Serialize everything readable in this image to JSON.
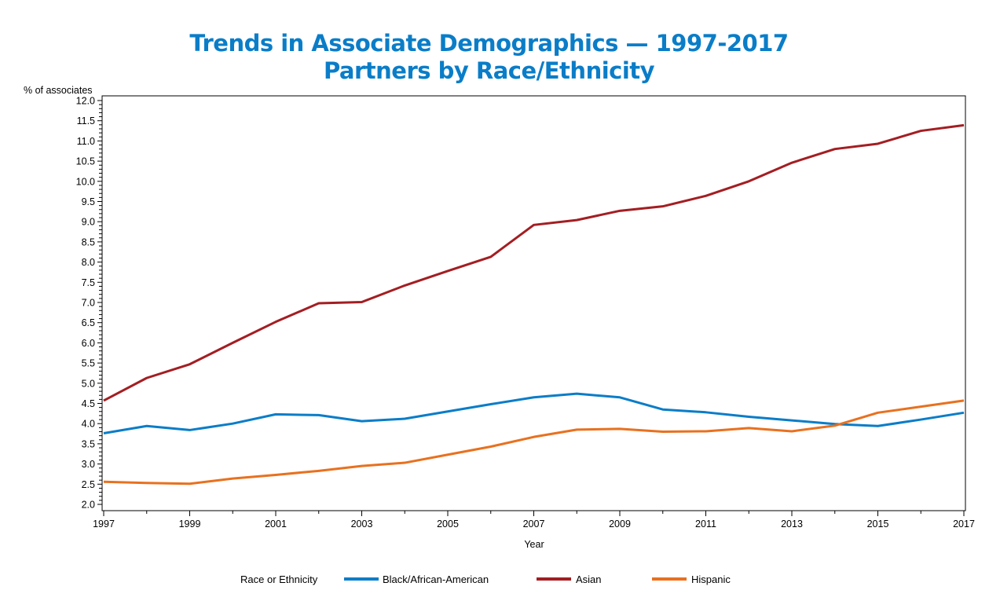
{
  "chart_data": {
    "type": "line",
    "title": "Trends in Associate Demographics — 1997-2017",
    "subtitle": "Partners by Race/Ethnicity",
    "ylabel": "% of associates",
    "xlabel": "Year",
    "ylim": [
      2.0,
      12.0
    ],
    "xlim": [
      1997,
      2017
    ],
    "yticks": [
      "2.0",
      "2.5",
      "3.0",
      "3.5",
      "4.0",
      "4.5",
      "5.0",
      "5.5",
      "6.0",
      "6.5",
      "7.0",
      "7.5",
      "8.0",
      "8.5",
      "9.0",
      "9.5",
      "10.0",
      "10.5",
      "11.0",
      "11.5",
      "12.0"
    ],
    "xticks": [
      "1997",
      "1999",
      "2001",
      "2003",
      "2005",
      "2007",
      "2009",
      "2011",
      "2013",
      "2015",
      "2017"
    ],
    "grid": false,
    "legend_title": "Race or Ethnicity",
    "legend_placement": "bottom",
    "x": [
      1997,
      1998,
      1999,
      2000,
      2001,
      2002,
      2003,
      2004,
      2005,
      2006,
      2007,
      2008,
      2009,
      2010,
      2011,
      2012,
      2013,
      2014,
      2015,
      2016,
      2017
    ],
    "series": [
      {
        "name": "Black/African-American",
        "color": "#0a7dc8",
        "values": [
          3.76,
          3.94,
          3.84,
          4.0,
          4.23,
          4.21,
          4.06,
          4.12,
          4.3,
          4.48,
          4.65,
          4.74,
          4.65,
          4.35,
          4.28,
          4.17,
          4.08,
          3.99,
          3.94,
          4.1,
          4.27
        ]
      },
      {
        "name": "Asian",
        "color": "#a31e22",
        "values": [
          4.57,
          5.13,
          5.47,
          6.0,
          6.52,
          6.98,
          7.01,
          7.42,
          7.78,
          8.13,
          8.92,
          9.04,
          9.27,
          9.38,
          9.64,
          10.0,
          10.46,
          10.8,
          10.93,
          11.25,
          11.39
        ]
      },
      {
        "name": "Hispanic",
        "color": "#e8711f",
        "values": [
          2.56,
          2.53,
          2.51,
          2.64,
          2.73,
          2.83,
          2.95,
          3.03,
          3.23,
          3.43,
          3.67,
          3.85,
          3.87,
          3.8,
          3.81,
          3.89,
          3.81,
          3.95,
          4.27,
          4.42,
          4.57
        ]
      }
    ]
  }
}
